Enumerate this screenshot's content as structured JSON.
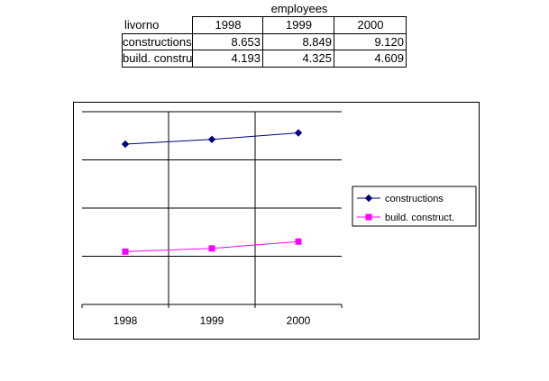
{
  "table": {
    "title": "employees",
    "corner_label": "livorno",
    "years": [
      "1998",
      "1999",
      "2000"
    ],
    "rows": [
      {
        "label": "constructions",
        "values": [
          "8.653",
          "8.849",
          "9.120"
        ]
      },
      {
        "label": "build. construct.",
        "values": [
          "4.193",
          "4.325",
          "4.609"
        ]
      }
    ]
  },
  "chart_data": {
    "type": "line",
    "x": [
      "1998",
      "1999",
      "2000"
    ],
    "series": [
      {
        "name": "constructions",
        "values": [
          8.653,
          8.849,
          9.12
        ],
        "color": "#000080",
        "marker": "diamond"
      },
      {
        "name": "build. construct.",
        "values": [
          4.193,
          4.325,
          4.609
        ],
        "color": "#ff00ff",
        "marker": "square"
      }
    ],
    "ylim": [
      2,
      10
    ],
    "grid": true,
    "legend_position": "right"
  }
}
